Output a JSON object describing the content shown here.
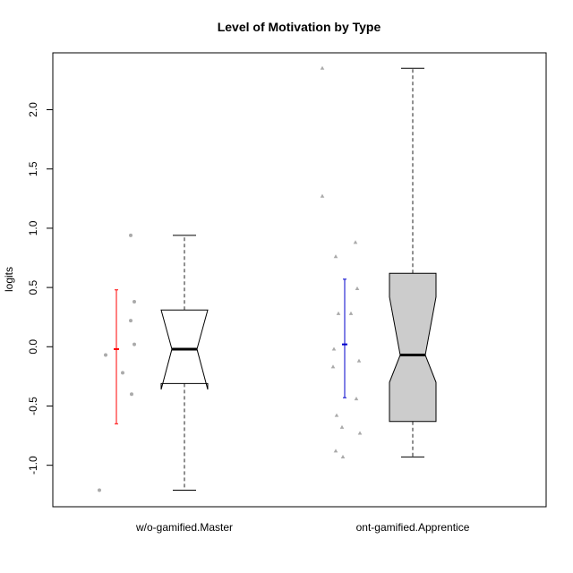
{
  "chart_data": {
    "type": "boxplot",
    "title": "Level of Motivation by Type",
    "xlabel": "",
    "ylabel": "logits",
    "ylim": [
      -1.35,
      2.48
    ],
    "yticks": [
      -1.0,
      -0.5,
      0.0,
      0.5,
      1.0,
      1.5,
      2.0
    ],
    "ytick_labels": [
      "-1.0",
      "-0.5",
      "0.0",
      "0.5",
      "1.0",
      "1.5",
      "2.0"
    ],
    "notched": true,
    "grid": false,
    "legend": "none",
    "groups": [
      {
        "category": "w/o-gamified.Master",
        "box_fill": "#ffffff",
        "stats": {
          "min": -1.21,
          "q1": -0.31,
          "median": -0.02,
          "q3": 0.31,
          "max": 0.94,
          "notch_low": -0.36,
          "notch_high": 0.31
        },
        "points_marker": "circle",
        "points": [
          0.94,
          0.38,
          0.22,
          0.02,
          -0.07,
          -0.22,
          -0.4,
          -1.21
        ],
        "mean": -0.02,
        "error_low": -0.65,
        "error_high": 0.48,
        "error_color": "#ff0000"
      },
      {
        "category": "ont-gamified.Apprentice",
        "box_fill": "#cccccc",
        "stats": {
          "min": -0.93,
          "q1": -0.63,
          "median": -0.07,
          "q3": 0.62,
          "max": 2.35,
          "notch_low": -0.3,
          "notch_high": 0.42
        },
        "points_marker": "triangle",
        "points": [
          2.35,
          1.27,
          0.88,
          0.76,
          0.49,
          0.28,
          0.28,
          -0.02,
          -0.12,
          -0.17,
          -0.44,
          -0.58,
          -0.68,
          -0.73,
          -0.88,
          -0.93
        ],
        "mean": 0.02,
        "error_low": -0.43,
        "error_high": 0.57,
        "error_color": "#0000cc"
      }
    ]
  }
}
